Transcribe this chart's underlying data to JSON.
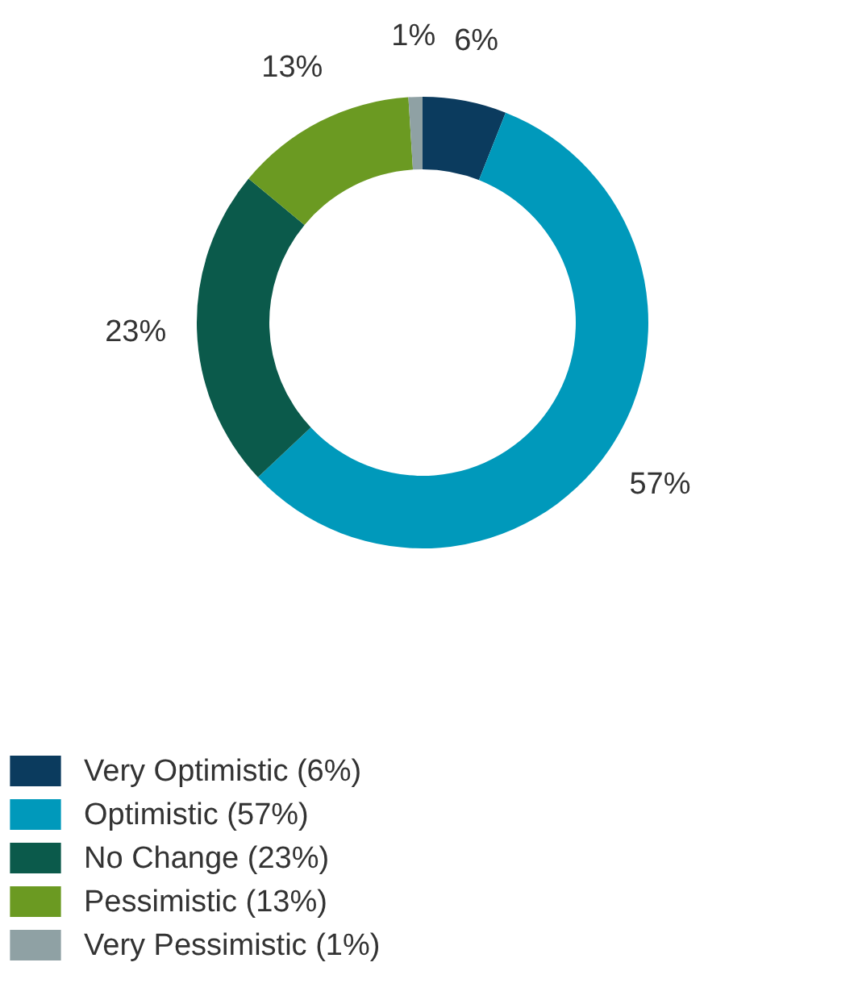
{
  "chart_data": {
    "type": "donut",
    "categories": [
      "Very Optimistic (6%)",
      "Optimistic (57%)",
      "No Change (23%)",
      "Pessimistic (13%)",
      "Very Pessimistic (1%)"
    ],
    "values": [
      6,
      57,
      23,
      13,
      1
    ],
    "colors": [
      "#0b3b5e",
      "#0099bb",
      "#0b5a4b",
      "#6b9a22",
      "#8fa1a4"
    ],
    "value_labels": [
      "6%",
      "57%",
      "23%",
      "13%",
      "1%"
    ],
    "legend": "bottom"
  }
}
